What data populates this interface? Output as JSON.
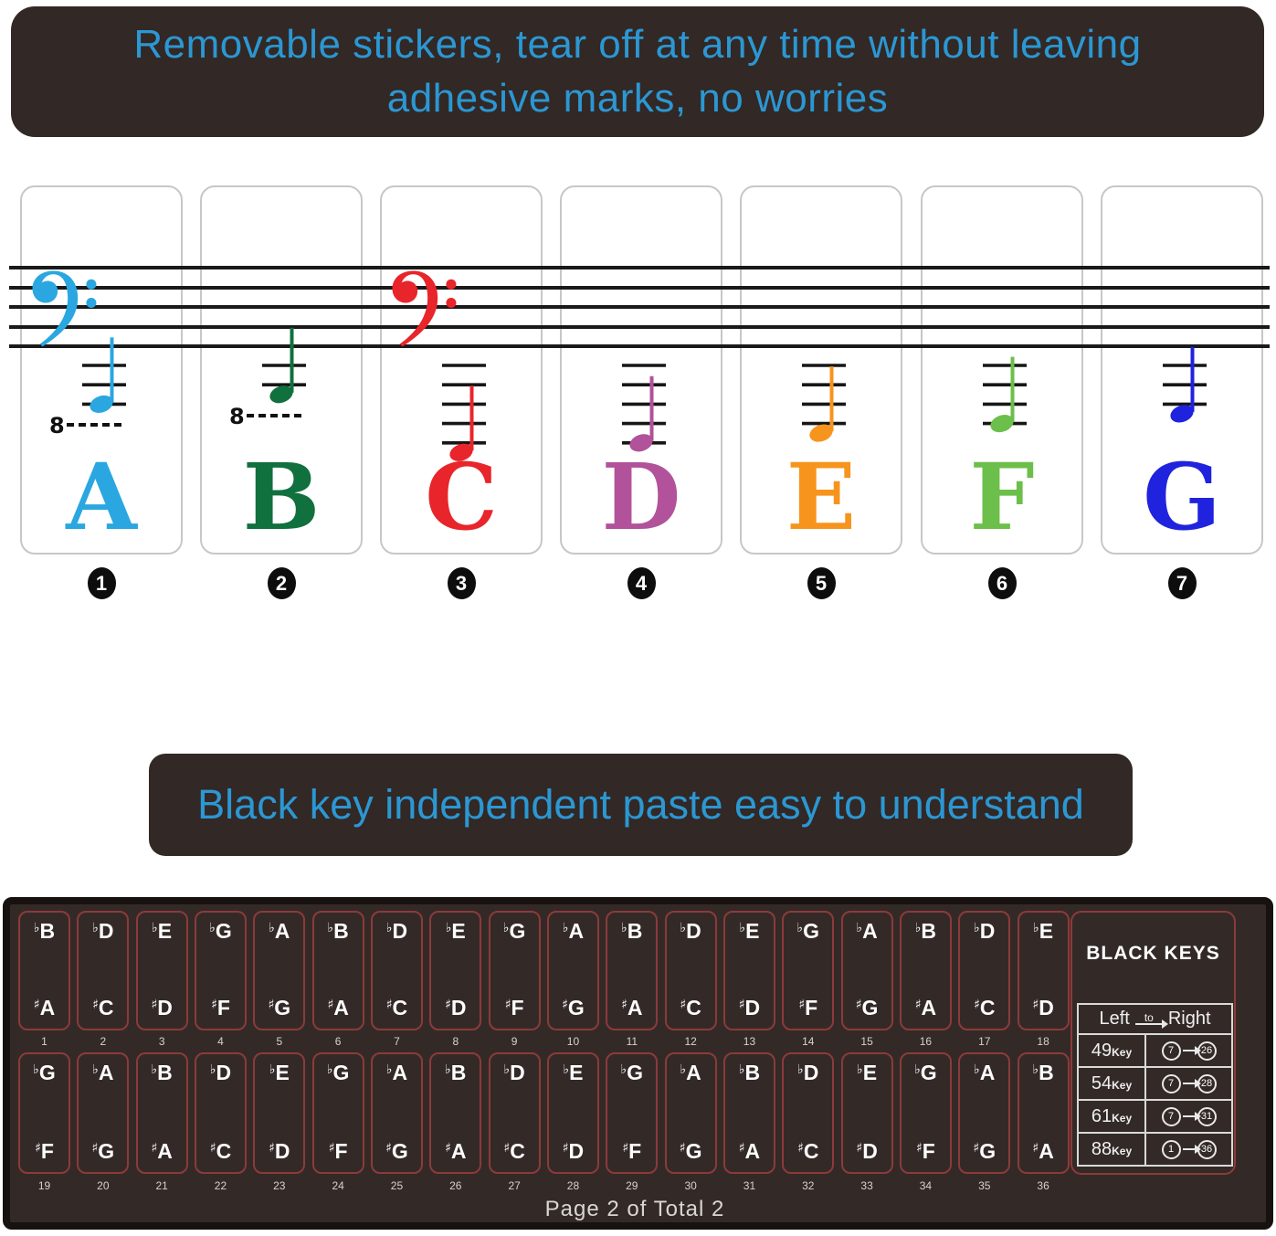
{
  "banners": {
    "top_line1": "Removable stickers, tear off at any time without leaving",
    "top_line2": "adhesive marks, no worries",
    "middle": "Black key independent paste easy to understand"
  },
  "colors": {
    "banner_bg": "#322825",
    "banner_text": "#2b97d3",
    "panel_bg": "#332a27",
    "cell_border": "#8c3a3a",
    "staff_line": "#1a1a1a"
  },
  "white_key_cards": [
    {
      "letter": "A",
      "number": "1",
      "color": "#2aa7e0",
      "clef": true,
      "ledger_lines": 3,
      "note_in_space_below": false,
      "octave_mark": true
    },
    {
      "letter": "B",
      "number": "2",
      "color": "#10703e",
      "clef": false,
      "ledger_lines": 2,
      "note_in_space_below": true,
      "octave_mark": true
    },
    {
      "letter": "C",
      "number": "3",
      "color": "#e8252a",
      "clef": true,
      "ledger_lines": 5,
      "note_in_space_below": true,
      "octave_mark": false
    },
    {
      "letter": "D",
      "number": "4",
      "color": "#b1529a",
      "clef": false,
      "ledger_lines": 5,
      "note_in_space_below": false,
      "octave_mark": false
    },
    {
      "letter": "E",
      "number": "5",
      "color": "#f7941e",
      "clef": false,
      "ledger_lines": 4,
      "note_in_space_below": true,
      "octave_mark": false
    },
    {
      "letter": "F",
      "number": "6",
      "color": "#6cbf4a",
      "clef": false,
      "ledger_lines": 4,
      "note_in_space_below": false,
      "octave_mark": false
    },
    {
      "letter": "G",
      "number": "7",
      "color": "#2023dd",
      "clef": false,
      "ledger_lines": 3,
      "note_in_space_below": true,
      "octave_mark": false
    }
  ],
  "black_key_rows": {
    "row1": [
      {
        "flat": "B",
        "sharp": "A",
        "num": "1"
      },
      {
        "flat": "D",
        "sharp": "C",
        "num": "2"
      },
      {
        "flat": "E",
        "sharp": "D",
        "num": "3"
      },
      {
        "flat": "G",
        "sharp": "F",
        "num": "4"
      },
      {
        "flat": "A",
        "sharp": "G",
        "num": "5"
      },
      {
        "flat": "B",
        "sharp": "A",
        "num": "6"
      },
      {
        "flat": "D",
        "sharp": "C",
        "num": "7"
      },
      {
        "flat": "E",
        "sharp": "D",
        "num": "8"
      },
      {
        "flat": "G",
        "sharp": "F",
        "num": "9"
      },
      {
        "flat": "A",
        "sharp": "G",
        "num": "10"
      },
      {
        "flat": "B",
        "sharp": "A",
        "num": "11"
      },
      {
        "flat": "D",
        "sharp": "C",
        "num": "12"
      },
      {
        "flat": "E",
        "sharp": "D",
        "num": "13"
      },
      {
        "flat": "G",
        "sharp": "F",
        "num": "14"
      },
      {
        "flat": "A",
        "sharp": "G",
        "num": "15"
      },
      {
        "flat": "B",
        "sharp": "A",
        "num": "16"
      },
      {
        "flat": "D",
        "sharp": "C",
        "num": "17"
      },
      {
        "flat": "E",
        "sharp": "D",
        "num": "18"
      }
    ],
    "row2": [
      {
        "flat": "G",
        "sharp": "F",
        "num": "19"
      },
      {
        "flat": "A",
        "sharp": "G",
        "num": "20"
      },
      {
        "flat": "B",
        "sharp": "A",
        "num": "21"
      },
      {
        "flat": "D",
        "sharp": "C",
        "num": "22"
      },
      {
        "flat": "E",
        "sharp": "D",
        "num": "23"
      },
      {
        "flat": "G",
        "sharp": "F",
        "num": "24"
      },
      {
        "flat": "A",
        "sharp": "G",
        "num": "25"
      },
      {
        "flat": "B",
        "sharp": "A",
        "num": "26"
      },
      {
        "flat": "D",
        "sharp": "C",
        "num": "27"
      },
      {
        "flat": "E",
        "sharp": "D",
        "num": "28"
      },
      {
        "flat": "G",
        "sharp": "F",
        "num": "29"
      },
      {
        "flat": "A",
        "sharp": "G",
        "num": "30"
      },
      {
        "flat": "B",
        "sharp": "A",
        "num": "31"
      },
      {
        "flat": "D",
        "sharp": "C",
        "num": "32"
      },
      {
        "flat": "E",
        "sharp": "D",
        "num": "33"
      },
      {
        "flat": "G",
        "sharp": "F",
        "num": "34"
      },
      {
        "flat": "A",
        "sharp": "G",
        "num": "35"
      },
      {
        "flat": "B",
        "sharp": "A",
        "num": "36"
      }
    ]
  },
  "black_keys_box": {
    "title": "BLACK KEYS",
    "header": {
      "left": "Left",
      "to": "to",
      "right": "Right"
    },
    "rows": [
      {
        "size": "49",
        "key_label": "Key",
        "from": "7",
        "to": "26"
      },
      {
        "size": "54",
        "key_label": "Key",
        "from": "7",
        "to": "28"
      },
      {
        "size": "61",
        "key_label": "Key",
        "from": "7",
        "to": "31"
      },
      {
        "size": "88",
        "key_label": "Key",
        "from": "1",
        "to": "36"
      }
    ]
  },
  "footer": {
    "page_text": "Page 2 of Total 2"
  }
}
